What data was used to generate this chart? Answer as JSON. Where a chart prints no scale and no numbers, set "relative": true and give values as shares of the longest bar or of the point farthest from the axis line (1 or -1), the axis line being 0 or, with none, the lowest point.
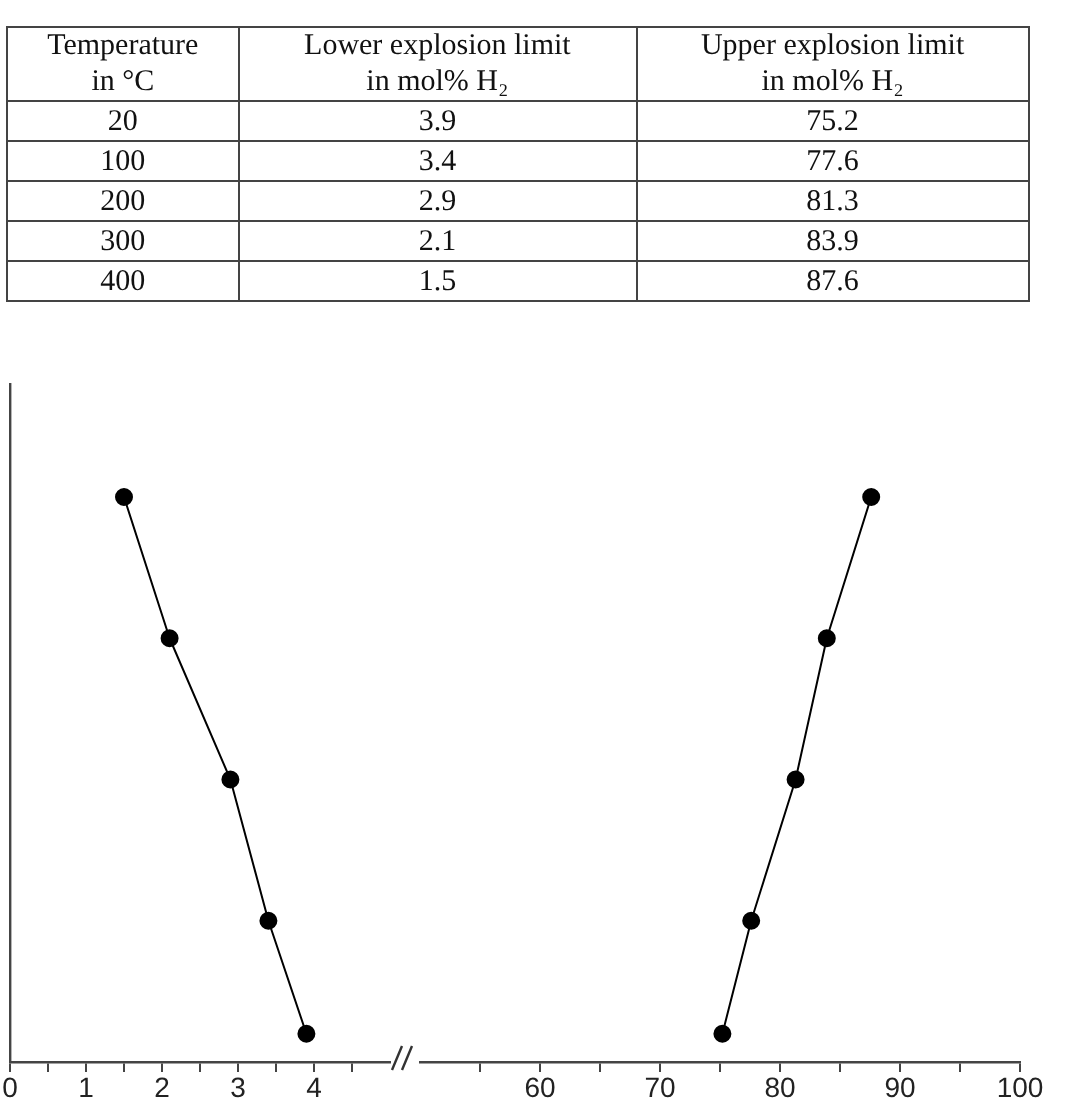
{
  "chart_data": [
    {
      "type": "other",
      "xlabel": "Temperature\nin °C",
      "categories": [
        "20",
        "100",
        "200",
        "300",
        "400"
      ],
      "data_labels": true,
      "series": [
        {
          "name": "Lower explosion limit\nin mol% H₂",
          "values": [
            3.9,
            3.4,
            2.9,
            2.1,
            1.5
          ]
        },
        {
          "name": "Upper explosion limit\nin mol% H₂",
          "values": [
            75.2,
            77.6,
            81.3,
            83.9,
            87.6
          ]
        }
      ]
    },
    {
      "type": "line",
      "marker": "circle",
      "line_style": "solid",
      "tick_labels": "x",
      "relative": true,
      "series": [
        {
          "color": "#000000",
          "x": [
            3.9,
            3.4,
            2.9,
            2.1,
            1.5
          ],
          "values": [
            0.05,
            0.25,
            0.5,
            0.75,
            1
          ]
        }
      ],
      "xlim": [
        0,
        5
      ],
      "xticks": [
        0,
        {
          "value": 0.5,
          "label": null
        },
        1,
        {
          "value": 1.5,
          "label": null
        },
        2,
        {
          "value": 2.5,
          "label": null
        },
        3,
        {
          "value": 3.5,
          "label": null
        },
        4,
        {
          "value": 4.5,
          "label": null
        }
      ]
    },
    {
      "type": "line",
      "marker": "circle",
      "line_style": "solid",
      "tick_labels": "x",
      "relative": true,
      "series": [
        {
          "color": "#000000",
          "x": [
            75.2,
            77.6,
            81.3,
            83.9,
            87.6
          ],
          "values": [
            0.05,
            0.25,
            0.5,
            0.75,
            1
          ]
        }
      ],
      "xlim": [
        50,
        100
      ],
      "xticks": [
        {
          "value": 55,
          "label": null
        },
        60,
        {
          "value": 65,
          "label": null
        },
        70,
        {
          "value": 75,
          "label": null
        },
        80,
        {
          "value": 85,
          "label": null
        },
        90,
        {
          "value": 95,
          "label": null
        },
        100
      ]
    }
  ]
}
